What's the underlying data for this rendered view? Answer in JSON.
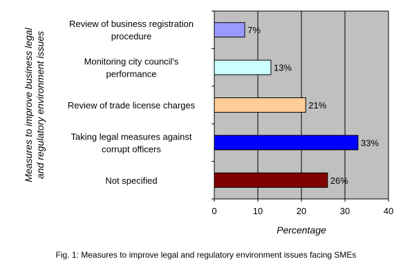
{
  "chart_data": {
    "type": "bar",
    "orientation": "horizontal",
    "categories": [
      [
        "Review of business registration",
        "procedure"
      ],
      [
        "Monitoring city council's",
        "performance"
      ],
      [
        "Review of trade license charges"
      ],
      [
        "Taking legal measures against",
        "corrupt officers"
      ],
      [
        "Not specified"
      ]
    ],
    "values": [
      7,
      13,
      21,
      33,
      26
    ],
    "data_labels": [
      "7%",
      "13%",
      "21%",
      "33%",
      "26%"
    ],
    "bar_colors": [
      "#9999ff",
      "#ccffff",
      "#ffcc99",
      "#0000ff",
      "#800000"
    ],
    "plot_background": "#c0c0c0",
    "xlabel": "Percentage",
    "ylabel": [
      "Measures to improve business legal",
      "and regulatory environment issues"
    ],
    "xlim": [
      0,
      40
    ],
    "xticks": [
      0,
      10,
      20,
      30,
      40
    ],
    "grid": true,
    "legend": "none"
  },
  "caption": "Fig. 1: Measures to improve legal and regulatory environment issues facing SMEs"
}
